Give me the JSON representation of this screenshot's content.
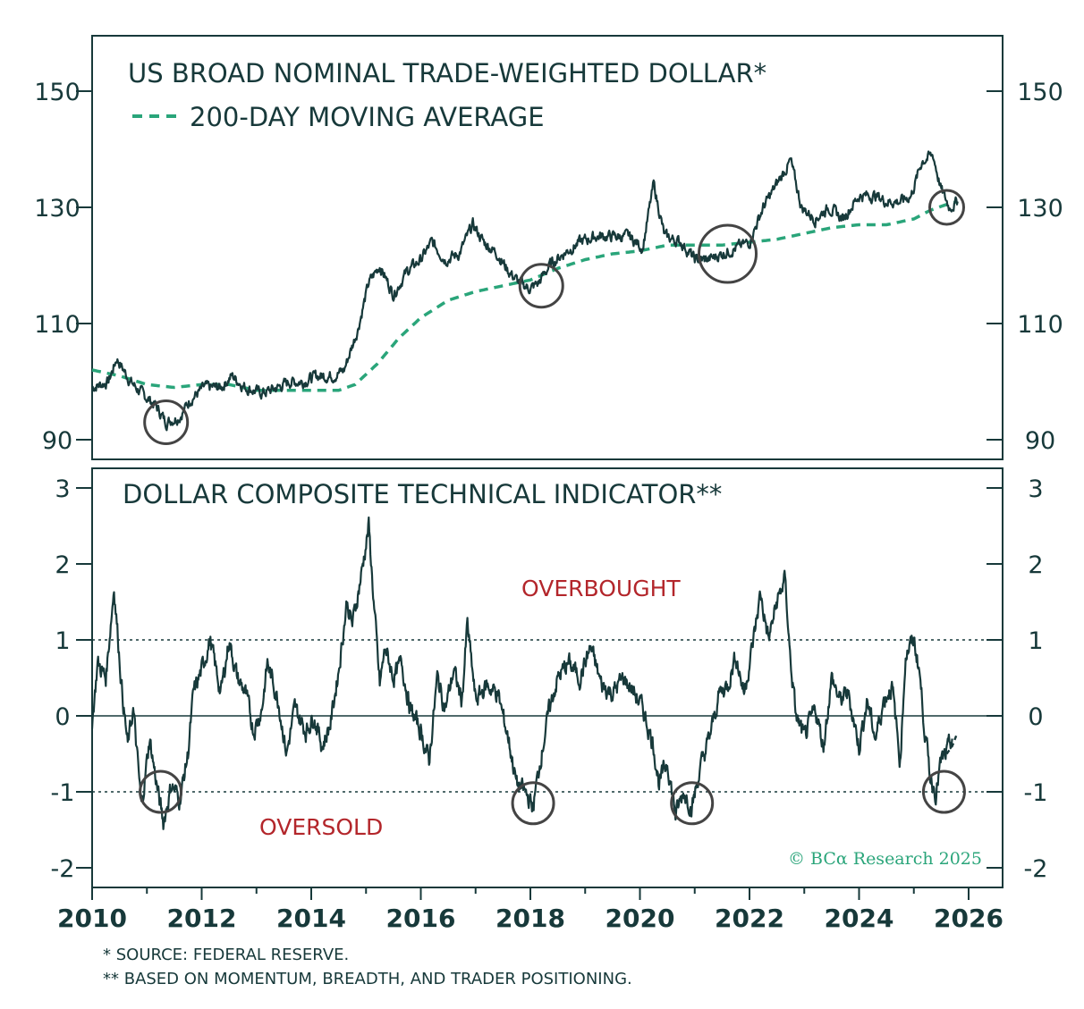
{
  "colors": {
    "series": "#17393a",
    "moving_average": "#2aa57a",
    "zone_text": "#b3262b",
    "circle": "#444444",
    "copyright": "#2aa57a"
  },
  "copyright": "© BCα Research 2025",
  "footnotes": [
    "*  SOURCE: FEDERAL RESERVE.",
    "** BASED ON MOMENTUM, BREADTH, AND TRADER POSITIONING."
  ],
  "chart_data": [
    {
      "type": "line",
      "title": "US BROAD NOMINAL TRADE-WEIGHTED DOLLAR*",
      "xlim": [
        2010,
        2026
      ],
      "xticks": [
        "2010",
        "2012",
        "2014",
        "2016",
        "2018",
        "2020",
        "2022",
        "2024",
        "2026"
      ],
      "ylim": [
        87,
        160
      ],
      "yticks": [
        90,
        110,
        130,
        150
      ],
      "grid": false,
      "legend": "top-left",
      "series": [
        {
          "style": "solid",
          "x": [
            2010.0,
            2010.3,
            2010.45,
            2010.7,
            2010.9,
            2011.15,
            2011.35,
            2011.6,
            2011.8,
            2012.05,
            2012.35,
            2012.55,
            2012.8,
            2013.1,
            2013.4,
            2013.6,
            2013.85,
            2014.1,
            2014.4,
            2014.6,
            2014.85,
            2015.05,
            2015.25,
            2015.5,
            2015.75,
            2016.0,
            2016.2,
            2016.45,
            2016.7,
            2016.95,
            2017.15,
            2017.4,
            2017.6,
            2017.8,
            2018.0,
            2018.15,
            2018.35,
            2018.6,
            2018.9,
            2019.2,
            2019.5,
            2019.8,
            2020.05,
            2020.25,
            2020.45,
            2020.75,
            2021.0,
            2021.25,
            2021.5,
            2021.75,
            2022.0,
            2022.25,
            2022.5,
            2022.75,
            2022.95,
            2023.2,
            2023.45,
            2023.7,
            2024.0,
            2024.3,
            2024.5,
            2024.75,
            2024.95,
            2025.15,
            2025.35,
            2025.5,
            2025.65,
            2025.8
          ],
          "values": [
            99,
            100,
            104,
            100,
            98,
            96,
            93,
            94,
            97,
            99,
            99,
            101,
            99,
            98,
            99,
            100,
            100,
            101,
            101,
            102,
            109,
            117,
            120,
            115,
            119,
            121,
            124,
            121,
            122,
            127,
            124,
            122,
            119,
            117,
            116,
            117,
            120,
            122,
            124,
            125,
            125,
            125,
            123,
            134,
            125,
            124,
            121,
            121,
            122,
            123,
            124,
            130,
            134,
            138,
            130,
            128,
            130,
            128,
            132,
            132,
            131,
            131,
            132,
            138,
            139,
            133,
            130,
            131
          ]
        },
        {
          "name": "200-DAY MOVING AVERAGE",
          "style": "dashed",
          "x": [
            2010.0,
            2010.5,
            2011.0,
            2011.5,
            2012.0,
            2012.5,
            2013.0,
            2013.5,
            2014.0,
            2014.5,
            2014.8,
            2015.2,
            2015.6,
            2016.0,
            2016.5,
            2017.0,
            2017.5,
            2018.0,
            2018.5,
            2019.0,
            2019.5,
            2020.0,
            2020.5,
            2021.0,
            2021.5,
            2022.0,
            2022.5,
            2023.0,
            2023.5,
            2024.0,
            2024.5,
            2025.0,
            2025.3,
            2025.6,
            2025.8
          ],
          "values": [
            102,
            101,
            99.5,
            99,
            99.5,
            99.5,
            98.5,
            98.5,
            98.5,
            98.5,
            99.5,
            103,
            107.5,
            111,
            114,
            115.5,
            116.5,
            117.5,
            119.5,
            121,
            122,
            122.5,
            123.5,
            123.5,
            123.5,
            124,
            124.5,
            125.5,
            126.5,
            127,
            127,
            128,
            129.5,
            130.5,
            131
          ]
        }
      ]
    },
    {
      "type": "line",
      "title": "DOLLAR COMPOSITE TECHNICAL INDICATOR**",
      "xlim": [
        2010,
        2026
      ],
      "xticks": [
        "2010",
        "2012",
        "2014",
        "2016",
        "2018",
        "2020",
        "2022",
        "2024",
        "2026"
      ],
      "ylim": [
        -2.3,
        3.3
      ],
      "yticks": [
        -2,
        -1,
        0,
        1,
        2,
        3
      ],
      "reference_lines": [
        1,
        0,
        -1
      ],
      "annotations": [
        "OVERBOUGHT",
        "OVERSOLD"
      ],
      "grid": false,
      "series": [
        {
          "style": "solid",
          "x": [
            2010.0,
            2010.1,
            2010.25,
            2010.4,
            2010.55,
            2010.65,
            2010.75,
            2010.9,
            2011.05,
            2011.2,
            2011.3,
            2011.45,
            2011.6,
            2011.75,
            2011.85,
            2012.0,
            2012.15,
            2012.35,
            2012.5,
            2012.65,
            2012.8,
            2012.95,
            2013.1,
            2013.2,
            2013.4,
            2013.55,
            2013.7,
            2013.9,
            2014.05,
            2014.2,
            2014.35,
            2014.5,
            2014.65,
            2014.75,
            2014.9,
            2015.05,
            2015.15,
            2015.25,
            2015.35,
            2015.5,
            2015.65,
            2015.8,
            2016.0,
            2016.15,
            2016.3,
            2016.45,
            2016.6,
            2016.75,
            2016.85,
            2017.0,
            2017.2,
            2017.4,
            2017.6,
            2017.75,
            2017.9,
            2018.05,
            2018.2,
            2018.35,
            2018.5,
            2018.7,
            2018.9,
            2019.1,
            2019.3,
            2019.5,
            2019.7,
            2019.9,
            2020.05,
            2020.25,
            2020.35,
            2020.5,
            2020.65,
            2020.8,
            2020.95,
            2021.1,
            2021.3,
            2021.45,
            2021.6,
            2021.75,
            2021.9,
            2022.05,
            2022.2,
            2022.35,
            2022.5,
            2022.65,
            2022.75,
            2022.85,
            2023.0,
            2023.2,
            2023.35,
            2023.5,
            2023.65,
            2023.8,
            2024.0,
            2024.15,
            2024.3,
            2024.45,
            2024.6,
            2024.75,
            2024.85,
            2025.0,
            2025.1,
            2025.2,
            2025.3,
            2025.4,
            2025.5,
            2025.6,
            2025.7
          ],
          "values": [
            -0.1,
            0.7,
            0.5,
            1.7,
            0.3,
            -0.4,
            0.1,
            -1.2,
            -0.3,
            -1.0,
            -1.4,
            -0.9,
            -1.1,
            -0.5,
            0.3,
            0.6,
            1.0,
            0.3,
            1.0,
            0.5,
            0.3,
            -0.2,
            0.1,
            0.7,
            0.2,
            -0.5,
            0.1,
            -0.2,
            0.0,
            -0.4,
            -0.1,
            0.6,
            1.5,
            1.2,
            1.8,
            2.5,
            1.4,
            0.4,
            0.9,
            0.5,
            0.7,
            0.1,
            -0.2,
            -0.6,
            0.5,
            0.1,
            0.6,
            0.2,
            1.2,
            0.2,
            0.4,
            0.3,
            -0.3,
            -0.9,
            -1.0,
            -1.2,
            -0.5,
            0.1,
            0.5,
            0.7,
            0.5,
            0.9,
            0.4,
            0.3,
            0.5,
            0.3,
            0.1,
            -0.4,
            -0.9,
            -0.6,
            -1.3,
            -1.0,
            -1.2,
            -0.7,
            -0.2,
            0.3,
            0.4,
            0.8,
            0.3,
            0.9,
            1.6,
            1.0,
            1.5,
            1.8,
            0.7,
            0.0,
            -0.3,
            0.1,
            -0.4,
            0.5,
            0.2,
            0.3,
            -0.4,
            0.2,
            -0.3,
            0.2,
            0.4,
            -0.6,
            0.8,
            1.0,
            0.6,
            -0.2,
            -0.8,
            -1.0,
            -0.6,
            -0.5,
            -0.3
          ]
        },
        {
          "style": "dashed",
          "x": [
            2025.6,
            2025.7,
            2025.78
          ],
          "values": [
            -0.5,
            -0.4,
            -0.25
          ]
        }
      ]
    }
  ]
}
